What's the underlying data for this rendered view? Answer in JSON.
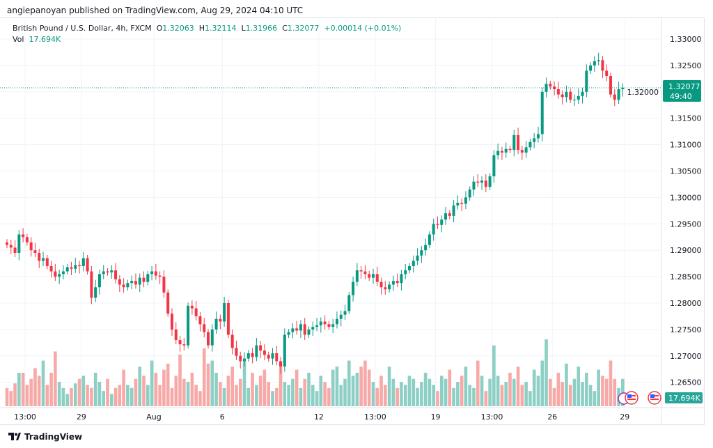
{
  "publisher": "angiepanoyan published on TradingView.com, Aug 29, 2024 04:10 UTC",
  "legend": {
    "symbol": "British Pound / U.S. Dollar, 4h, FXCM",
    "o_label": "O",
    "o": "1.32063",
    "h_label": "H",
    "h": "1.32114",
    "l_label": "L",
    "l": "1.31966",
    "c_label": "C",
    "c": "1.32077",
    "change": "+0.00014 (+0.01%)",
    "vol_label": "Vol",
    "vol": "17.694K"
  },
  "last_price_tag": {
    "price": "1.32077",
    "countdown": "49:40",
    "volume": "17.694K"
  },
  "footer": {
    "brand": "TradingView"
  },
  "colors": {
    "up": "#089981",
    "down": "#f23645",
    "vol_up": "#8dcfc4",
    "vol_down": "#f7a9a7",
    "grid": "#f0f3fa"
  },
  "chart_data": {
    "type": "candlestick",
    "title": "British Pound / U.S. Dollar, 4h, FXCM",
    "ylim": [
      1.2615,
      1.3335
    ],
    "y_ticks": [
      "1.33000",
      "1.32500",
      "1.32000",
      "1.31500",
      "1.31000",
      "1.30500",
      "1.30000",
      "1.29500",
      "1.29000",
      "1.28500",
      "1.28000",
      "1.27500",
      "1.27000",
      "1.26500"
    ],
    "x_ticks": [
      {
        "label": "13:00",
        "index": 5
      },
      {
        "label": "29",
        "index": 19
      },
      {
        "label": "Aug",
        "index": 37
      },
      {
        "label": "6",
        "index": 54
      },
      {
        "label": "12",
        "index": 78
      },
      {
        "label": "13:00",
        "index": 92
      },
      {
        "label": "19",
        "index": 107
      },
      {
        "label": "13:00",
        "index": 121
      },
      {
        "label": "26",
        "index": 136
      },
      {
        "label": "29",
        "index": 154
      }
    ],
    "open_first": 1.2915,
    "closes": [
      1.291,
      1.2905,
      1.2895,
      1.293,
      1.2925,
      1.2915,
      1.29,
      1.2895,
      1.288,
      1.2885,
      1.287,
      1.286,
      1.285,
      1.2855,
      1.286,
      1.2868,
      1.2865,
      1.2872,
      1.287,
      1.2885,
      1.286,
      1.281,
      1.283,
      1.2855,
      1.286,
      1.2858,
      1.2862,
      1.2845,
      1.2835,
      1.283,
      1.2838,
      1.2842,
      1.2835,
      1.2848,
      1.284,
      1.2855,
      1.286,
      1.2852,
      1.285,
      1.282,
      1.278,
      1.275,
      1.273,
      1.2722,
      1.272,
      1.2795,
      1.279,
      1.2775,
      1.276,
      1.2745,
      1.272,
      1.275,
      1.277,
      1.2765,
      1.28,
      1.274,
      1.2715,
      1.27,
      1.269,
      1.2695,
      1.2705,
      1.2698,
      1.272,
      1.271,
      1.2702,
      1.2695,
      1.2705,
      1.269,
      1.268,
      1.274,
      1.2745,
      1.2752,
      1.2748,
      1.276,
      1.274,
      1.275,
      1.2755,
      1.2758,
      1.2765,
      1.276,
      1.2755,
      1.276,
      1.277,
      1.2778,
      1.2785,
      1.2815,
      1.284,
      1.2862,
      1.286,
      1.2855,
      1.2848,
      1.2855,
      1.284,
      1.283,
      1.2826,
      1.2835,
      1.2842,
      1.2838,
      1.2855,
      1.2862,
      1.287,
      1.288,
      1.289,
      1.29,
      1.291,
      1.293,
      1.295,
      1.2948,
      1.2958,
      1.297,
      1.2965,
      1.2985,
      1.299,
      1.2988,
      1.3,
      1.3015,
      1.303,
      1.3028,
      1.3032,
      1.302,
      1.304,
      1.308,
      1.3088,
      1.3085,
      1.3092,
      1.309,
      1.3118,
      1.309,
      1.3085,
      1.3095,
      1.3105,
      1.3112,
      1.312,
      1.32,
      1.3215,
      1.321,
      1.3205,
      1.3195,
      1.319,
      1.32,
      1.3185,
      1.3185,
      1.3192,
      1.32,
      1.324,
      1.325,
      1.3258,
      1.326,
      1.324,
      1.323,
      1.3195,
      1.3185,
      1.3205,
      1.3208
    ],
    "volumes_k": [
      12,
      10,
      15,
      22,
      22,
      14,
      18,
      25,
      20,
      30,
      14,
      22,
      36,
      16,
      12,
      8,
      12,
      15,
      18,
      20,
      14,
      12,
      22,
      16,
      10,
      18,
      8,
      12,
      14,
      24,
      14,
      12,
      18,
      26,
      20,
      14,
      30,
      22,
      14,
      24,
      28,
      12,
      20,
      34,
      18,
      16,
      22,
      14,
      10,
      38,
      28,
      30,
      22,
      16,
      12,
      20,
      26,
      14,
      18,
      30,
      12,
      22,
      14,
      20,
      24,
      16,
      10,
      12,
      28,
      16,
      14,
      18,
      24,
      12,
      18,
      22,
      14,
      10,
      20,
      16,
      12,
      24,
      26,
      14,
      18,
      30,
      20,
      22,
      26,
      30,
      24,
      16,
      12,
      20,
      14,
      26,
      18,
      12,
      16,
      14,
      20,
      18,
      12,
      16,
      22,
      18,
      14,
      10,
      20,
      18,
      24,
      12,
      16,
      20,
      26,
      14,
      12,
      30,
      20,
      10,
      18,
      40,
      20,
      14,
      16,
      22,
      18,
      26,
      14,
      16,
      10,
      24,
      20,
      30,
      44,
      18,
      12,
      22,
      16,
      28,
      14,
      18,
      26,
      16,
      22,
      14,
      10,
      24,
      20,
      18,
      30,
      18,
      12,
      18
    ]
  }
}
